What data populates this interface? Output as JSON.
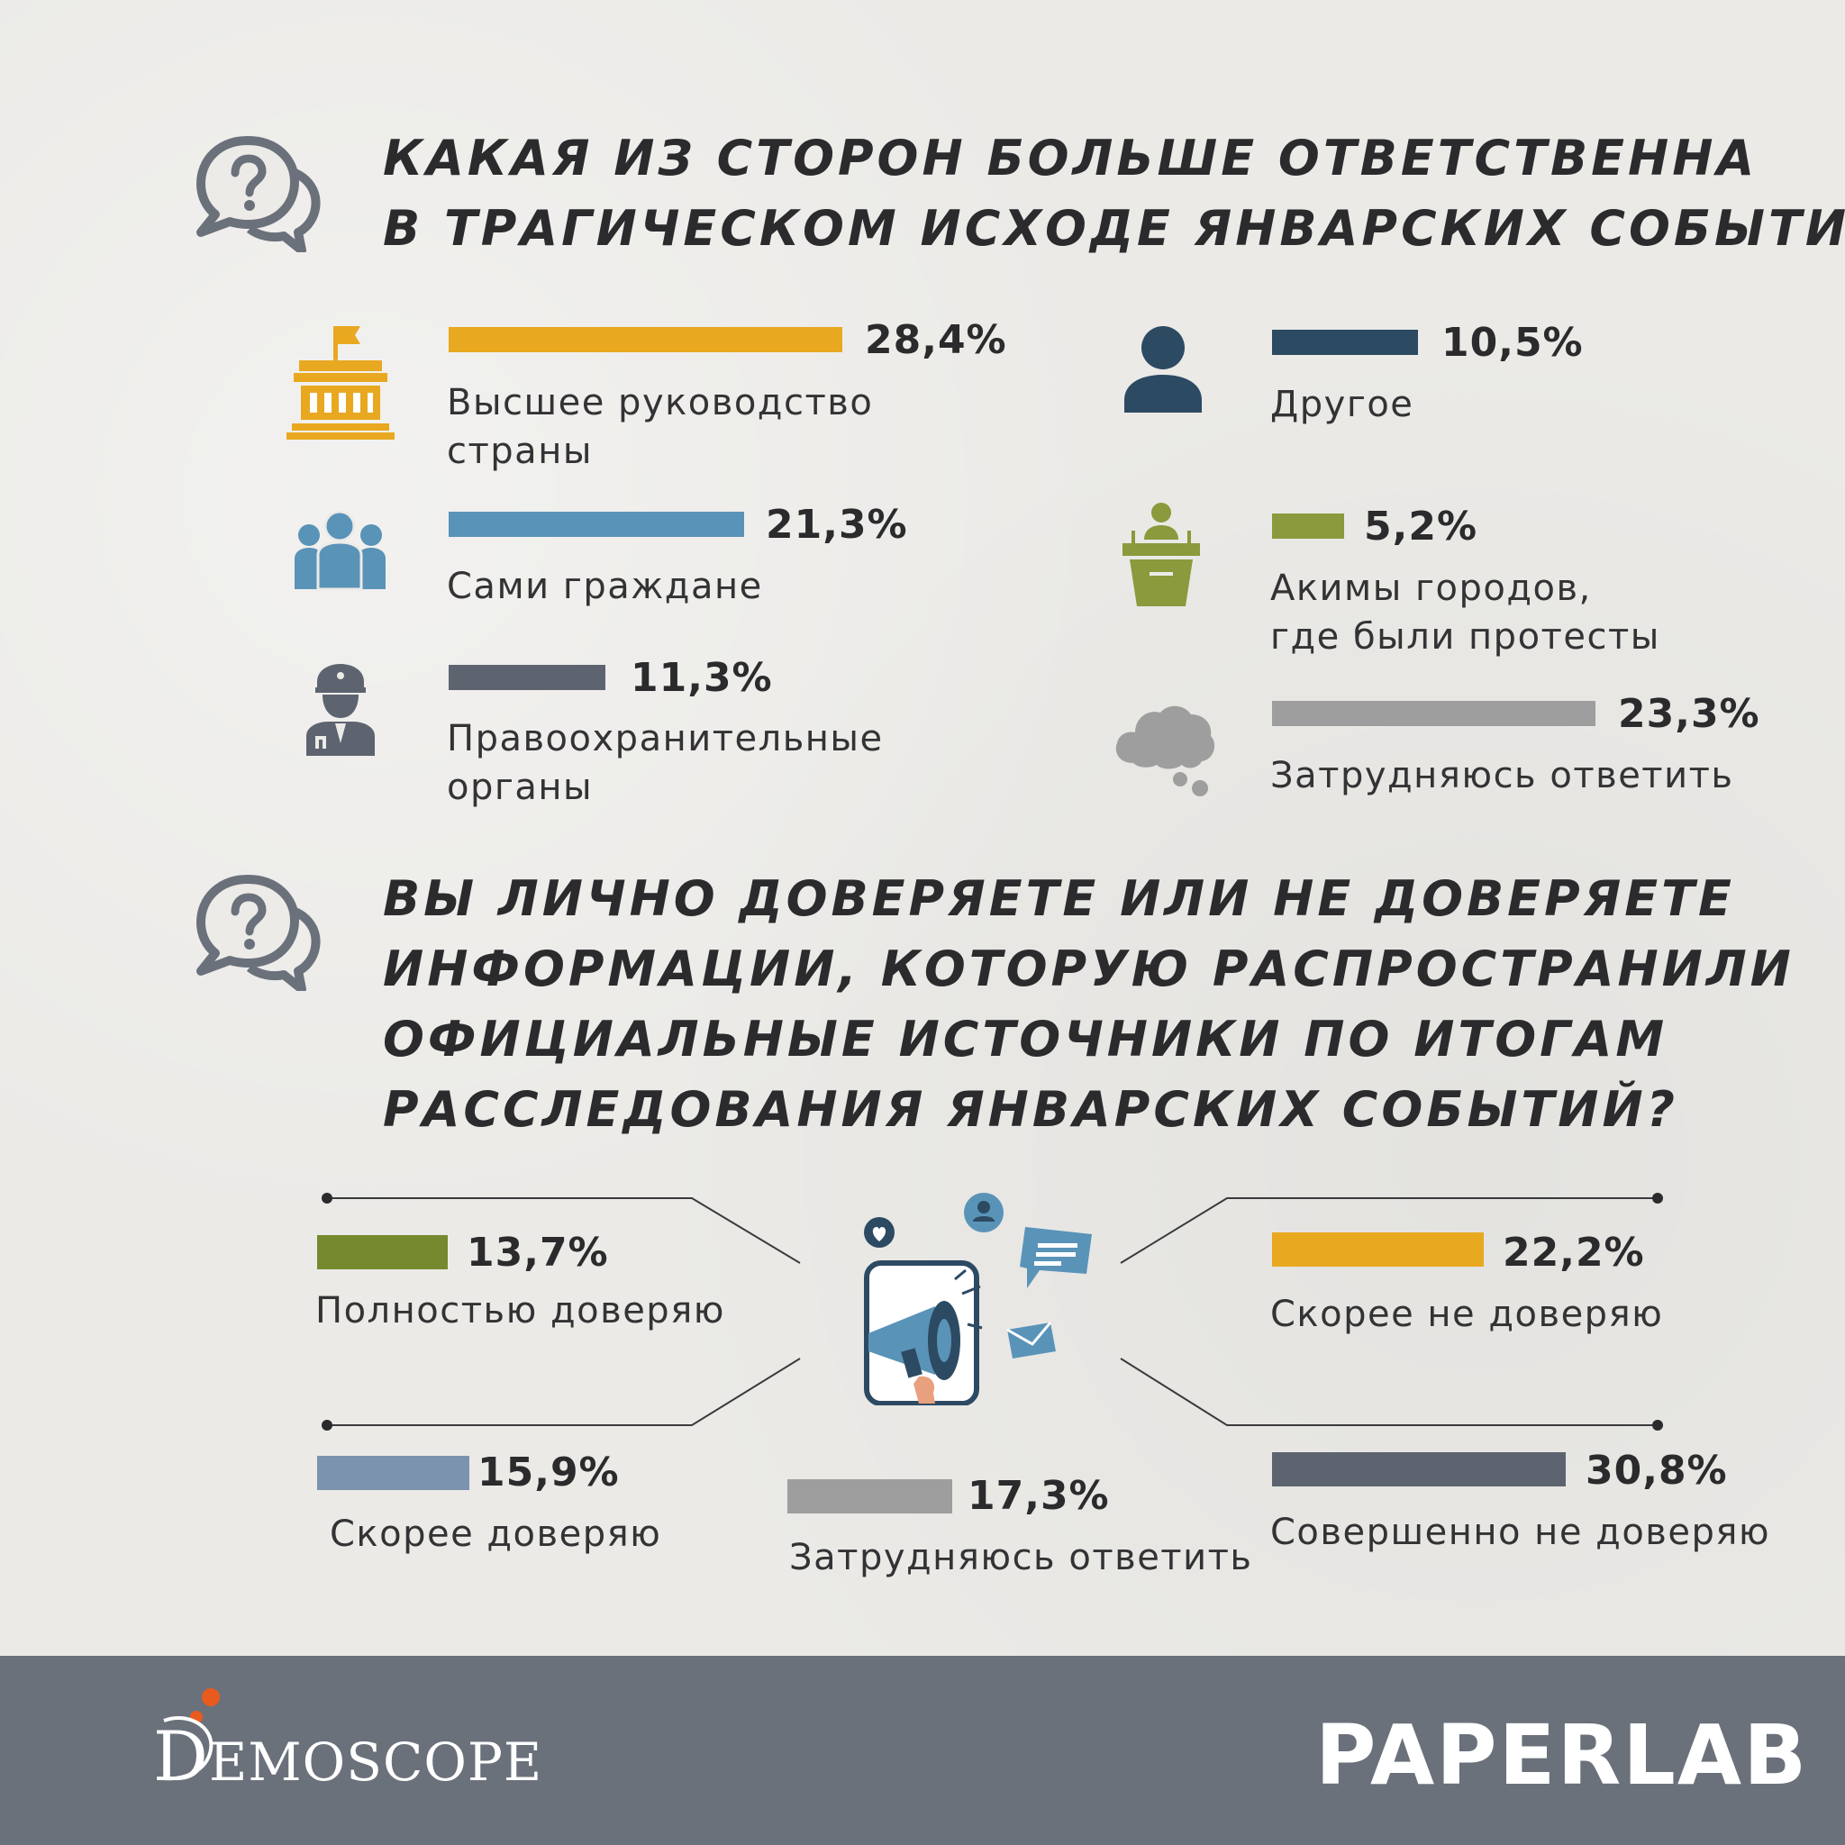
{
  "colors": {
    "gold": "#e8a820",
    "blue": "#5a93b8",
    "slate": "#5d6470",
    "navy": "#2d4a63",
    "olive": "#8a9a3c",
    "gray": "#9e9e9e",
    "olive_dark": "#758a2e",
    "steel": "#7b93ad",
    "footer": "#6b717b"
  },
  "question1": {
    "line1": "КАКАЯ ИЗ СТОРОН БОЛЬШЕ ОТВЕТСТВЕННА",
    "line2": "В ТРАГИЧЕСКОМ ИСХОДЕ ЯНВАРСКИХ СОБЫТИЙ?"
  },
  "question2": {
    "line1": "ВЫ ЛИЧНО ДОВЕРЯЕТЕ ИЛИ НЕ ДОВЕРЯЕТЕ",
    "line2": "ИНФОРМАЦИИ, КОТОРУЮ РАСПРОСТРАНИЛИ",
    "line3": "ОФИЦИАЛЬНЫЕ ИСТОЧНИКИ ПО ИТОГАМ",
    "line4": "РАССЛЕДОВАНИЯ ЯНВАРСКИХ СОБЫТИЙ?"
  },
  "chart_data": [
    {
      "type": "bar",
      "categories": [
        "Высшее руководство страны",
        "Сами граждане",
        "Правоохранительные органы",
        "Другое",
        "Акимы городов, где были протесты",
        "Затрудняюсь ответить"
      ],
      "values": [
        28.4,
        21.3,
        11.3,
        10.5,
        5.2,
        23.3
      ],
      "value_labels": [
        "28,4%",
        "21,3%",
        "11,3%",
        "10,5%",
        "5,2%",
        "23,3%"
      ],
      "label_lines": [
        [
          "Высшее руководство",
          "страны"
        ],
        [
          "Сами граждане"
        ],
        [
          "Правоохранительные",
          "органы"
        ],
        [
          "Другое"
        ],
        [
          "Акимы городов,",
          "где были протесты"
        ],
        [
          "Затрудняюсь ответить"
        ]
      ],
      "colors": [
        "#e8a820",
        "#5a93b8",
        "#5d6470",
        "#2d4a63",
        "#8a9a3c",
        "#9e9e9e"
      ],
      "icons": [
        "government-building-icon",
        "people-group-icon",
        "police-officer-icon",
        "person-icon",
        "speaker-podium-icon",
        "thought-cloud-icon"
      ]
    },
    {
      "type": "bar",
      "categories": [
        "Полностью доверяю",
        "Скорее доверяю",
        "Затрудняюсь ответить",
        "Скорее не доверяю",
        "Совершенно не доверяю"
      ],
      "values": [
        13.7,
        15.9,
        17.3,
        22.2,
        30.8
      ],
      "value_labels": [
        "13,7%",
        "15,9%",
        "17,3%",
        "22,2%",
        "30,8%"
      ],
      "colors": [
        "#758a2e",
        "#7b93ad",
        "#9e9e9e",
        "#e8a820",
        "#5d6470"
      ]
    }
  ],
  "footer": {
    "demoscope_letter": "D",
    "demoscope_rest": "EMOSCOPE",
    "paperlab": "PAPERLAB"
  }
}
